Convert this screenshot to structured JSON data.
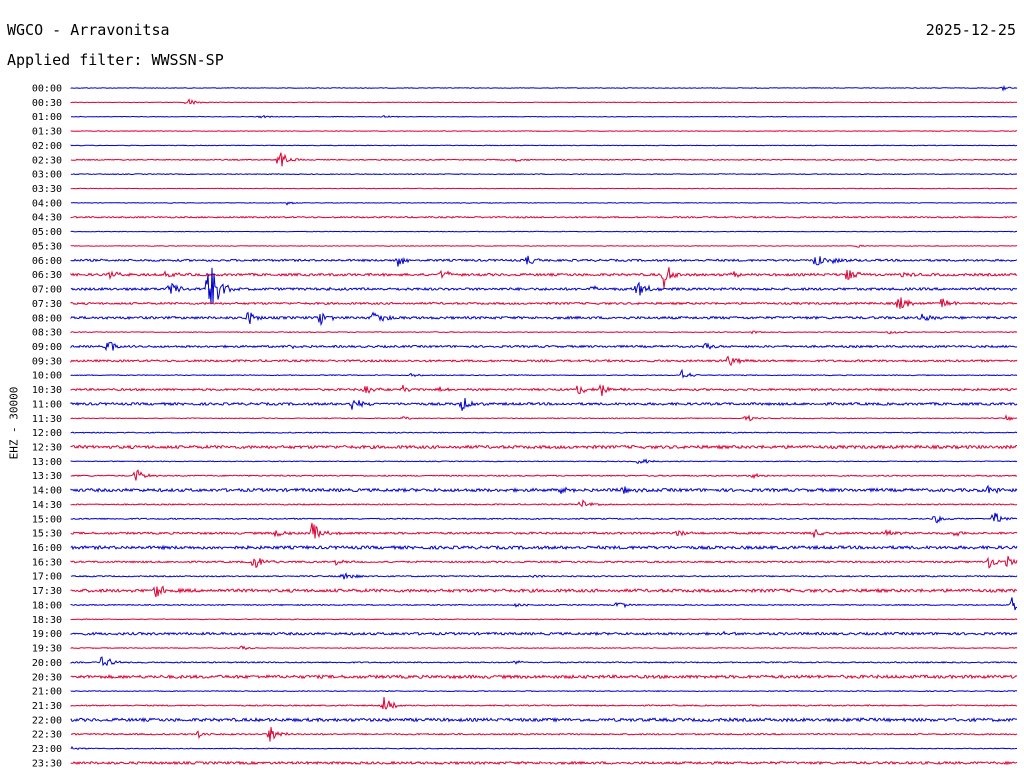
{
  "header": {
    "station": "WGCO - Arravonitsa",
    "date": "2025-12-25",
    "filter": "Applied filter: WWSSN-SP"
  },
  "chart_data": {
    "type": "line",
    "title": "WGCO - Arravonitsa",
    "subtitle": "Applied filter: WWSSN-SP",
    "ylabel": "EHZ - 30000",
    "xlabel": "",
    "grid": false,
    "trace_colors": [
      "#0000cc",
      "#dd0033"
    ],
    "rows": [
      {
        "time": "00:00",
        "noise": 0.3,
        "events": [
          {
            "x": 0.985,
            "amp": 2
          }
        ]
      },
      {
        "time": "00:30",
        "noise": 0.3,
        "events": [
          {
            "x": 0.122,
            "amp": 5
          }
        ]
      },
      {
        "time": "01:00",
        "noise": 0.3,
        "events": [
          {
            "x": 0.2,
            "amp": 1.5
          },
          {
            "x": 0.33,
            "amp": 1.5
          }
        ]
      },
      {
        "time": "01:30",
        "noise": 0.3,
        "events": []
      },
      {
        "time": "02:00",
        "noise": 0.3,
        "events": []
      },
      {
        "time": "02:30",
        "noise": 0.5,
        "events": [
          {
            "x": 0.219,
            "amp": 11
          },
          {
            "x": 0.47,
            "amp": 2
          }
        ]
      },
      {
        "time": "03:00",
        "noise": 0.4,
        "events": []
      },
      {
        "time": "03:30",
        "noise": 0.3,
        "events": []
      },
      {
        "time": "04:00",
        "noise": 0.3,
        "events": [
          {
            "x": 0.228,
            "amp": 2
          }
        ]
      },
      {
        "time": "04:30",
        "noise": 0.7,
        "events": []
      },
      {
        "time": "05:00",
        "noise": 0.3,
        "events": []
      },
      {
        "time": "05:30",
        "noise": 0.3,
        "events": [
          {
            "x": 0.83,
            "amp": 2
          }
        ]
      },
      {
        "time": "06:00",
        "noise": 1.0,
        "events": [
          {
            "x": 0.345,
            "amp": 7
          },
          {
            "x": 0.483,
            "amp": 6
          },
          {
            "x": 0.805,
            "amp": 4
          },
          {
            "x": 0.787,
            "amp": 7
          }
        ]
      },
      {
        "time": "06:30",
        "noise": 1.2,
        "events": [
          {
            "x": 0.042,
            "amp": 4
          },
          {
            "x": 0.1,
            "amp": 7
          },
          {
            "x": 0.39,
            "amp": 6
          },
          {
            "x": 0.627,
            "amp": 14
          },
          {
            "x": 0.7,
            "amp": 4
          },
          {
            "x": 0.82,
            "amp": 8
          },
          {
            "x": 0.88,
            "amp": 3
          }
        ]
      },
      {
        "time": "07:00",
        "noise": 1.2,
        "events": [
          {
            "x": 0.103,
            "amp": 8
          },
          {
            "x": 0.145,
            "amp": 45
          },
          {
            "x": 0.27,
            "amp": 2
          },
          {
            "x": 0.55,
            "amp": 3
          },
          {
            "x": 0.598,
            "amp": 10
          }
        ]
      },
      {
        "time": "07:30",
        "noise": 1.0,
        "events": [
          {
            "x": 0.874,
            "amp": 9
          },
          {
            "x": 0.92,
            "amp": 7
          }
        ]
      },
      {
        "time": "08:00",
        "noise": 1.2,
        "events": [
          {
            "x": 0.187,
            "amp": 7
          },
          {
            "x": 0.263,
            "amp": 8
          },
          {
            "x": 0.32,
            "amp": 10
          },
          {
            "x": 0.9,
            "amp": 4
          }
        ]
      },
      {
        "time": "08:30",
        "noise": 0.4,
        "events": [
          {
            "x": 0.72,
            "amp": 2
          },
          {
            "x": 0.864,
            "amp": 3
          }
        ]
      },
      {
        "time": "09:00",
        "noise": 1.0,
        "events": [
          {
            "x": 0.039,
            "amp": 7
          },
          {
            "x": 0.23,
            "amp": 5
          },
          {
            "x": 0.67,
            "amp": 3
          }
        ]
      },
      {
        "time": "09:30",
        "noise": 1.0,
        "events": [
          {
            "x": 0.695,
            "amp": 7
          }
        ]
      },
      {
        "time": "10:00",
        "noise": 0.4,
        "events": [
          {
            "x": 0.645,
            "amp": 6
          },
          {
            "x": 0.36,
            "amp": 2
          }
        ]
      },
      {
        "time": "10:30",
        "noise": 1.0,
        "events": [
          {
            "x": 0.31,
            "amp": 6
          },
          {
            "x": 0.35,
            "amp": 4
          },
          {
            "x": 0.39,
            "amp": 3
          },
          {
            "x": 0.535,
            "amp": 6
          },
          {
            "x": 0.56,
            "amp": 8
          }
        ]
      },
      {
        "time": "11:00",
        "noise": 1.2,
        "events": [
          {
            "x": 0.297,
            "amp": 7
          },
          {
            "x": 0.413,
            "amp": 9
          }
        ]
      },
      {
        "time": "11:30",
        "noise": 0.4,
        "events": [
          {
            "x": 0.35,
            "amp": 2
          },
          {
            "x": 0.713,
            "amp": 4
          },
          {
            "x": 0.988,
            "amp": 3
          }
        ]
      },
      {
        "time": "12:00",
        "noise": 0.5,
        "events": []
      },
      {
        "time": "12:30",
        "noise": 1.5,
        "events": []
      },
      {
        "time": "13:00",
        "noise": 0.4,
        "events": [
          {
            "x": 0.6,
            "amp": 5
          }
        ]
      },
      {
        "time": "13:30",
        "noise": 0.6,
        "events": [
          {
            "x": 0.068,
            "amp": 8
          },
          {
            "x": 0.72,
            "amp": 3
          }
        ]
      },
      {
        "time": "14:00",
        "noise": 1.5,
        "events": [
          {
            "x": 0.517,
            "amp": 5
          },
          {
            "x": 0.582,
            "amp": 4
          },
          {
            "x": 0.97,
            "amp": 6
          }
        ]
      },
      {
        "time": "14:30",
        "noise": 0.6,
        "events": [
          {
            "x": 0.538,
            "amp": 6
          }
        ]
      },
      {
        "time": "15:00",
        "noise": 0.6,
        "events": [
          {
            "x": 0.913,
            "amp": 5
          },
          {
            "x": 0.975,
            "amp": 8
          }
        ]
      },
      {
        "time": "15:30",
        "noise": 1.0,
        "events": [
          {
            "x": 0.217,
            "amp": 7
          },
          {
            "x": 0.255,
            "amp": 12
          },
          {
            "x": 0.64,
            "amp": 4
          },
          {
            "x": 0.785,
            "amp": 5
          },
          {
            "x": 0.86,
            "amp": 5
          },
          {
            "x": 0.93,
            "amp": 4
          }
        ]
      },
      {
        "time": "16:00",
        "noise": 1.5,
        "events": []
      },
      {
        "time": "16:30",
        "noise": 0.8,
        "events": [
          {
            "x": 0.193,
            "amp": 9
          },
          {
            "x": 0.28,
            "amp": 3
          },
          {
            "x": 0.97,
            "amp": 7
          },
          {
            "x": 0.99,
            "amp": 6
          }
        ]
      },
      {
        "time": "17:00",
        "noise": 0.6,
        "events": [
          {
            "x": 0.287,
            "amp": 8
          },
          {
            "x": 0.49,
            "amp": 2
          }
        ]
      },
      {
        "time": "17:30",
        "noise": 1.5,
        "events": [
          {
            "x": 0.09,
            "amp": 9
          }
        ]
      },
      {
        "time": "18:00",
        "noise": 0.5,
        "events": [
          {
            "x": 0.47,
            "amp": 2
          },
          {
            "x": 0.577,
            "amp": 5
          },
          {
            "x": 0.995,
            "amp": 9
          }
        ]
      },
      {
        "time": "18:30",
        "noise": 0.4,
        "events": []
      },
      {
        "time": "19:00",
        "noise": 1.2,
        "events": [
          {
            "x": 0.69,
            "amp": 2
          }
        ]
      },
      {
        "time": "19:30",
        "noise": 0.4,
        "events": [
          {
            "x": 0.18,
            "amp": 2
          }
        ]
      },
      {
        "time": "20:00",
        "noise": 0.6,
        "events": [
          {
            "x": 0.033,
            "amp": 8
          },
          {
            "x": 0.47,
            "amp": 2
          }
        ]
      },
      {
        "time": "20:30",
        "noise": 1.5,
        "events": []
      },
      {
        "time": "21:00",
        "noise": 0.4,
        "events": []
      },
      {
        "time": "21:30",
        "noise": 0.6,
        "events": [
          {
            "x": 0.33,
            "amp": 9
          }
        ]
      },
      {
        "time": "22:00",
        "noise": 1.5,
        "events": [
          {
            "x": 0.835,
            "amp": 3
          }
        ]
      },
      {
        "time": "22:30",
        "noise": 0.7,
        "events": [
          {
            "x": 0.135,
            "amp": 5
          },
          {
            "x": 0.21,
            "amp": 9
          }
        ]
      },
      {
        "time": "23:00",
        "noise": 0.4,
        "events": [
          {
            "x": 0.0,
            "amp": 2
          }
        ]
      },
      {
        "time": "23:30",
        "noise": 1.2,
        "events": []
      }
    ]
  }
}
